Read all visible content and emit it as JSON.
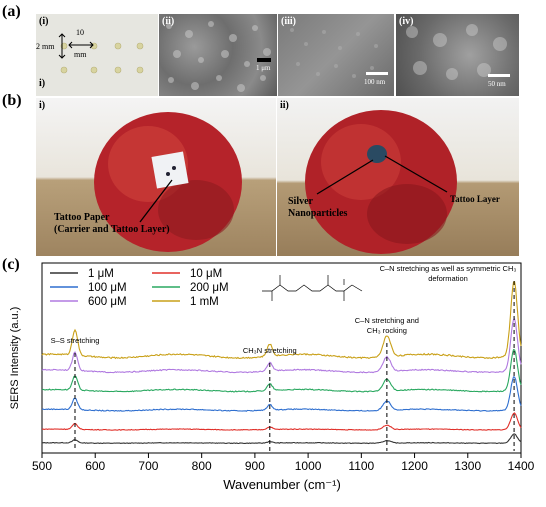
{
  "panel_a": {
    "label": "(a)",
    "sub_i": "(i)",
    "sub_i_lower": "i)",
    "dim_2mm": "2 mm",
    "dim_10mm_top": "10",
    "dim_10mm_bottom": "mm",
    "sub_ii": "(ii)",
    "sub_iii": "(iii)",
    "sub_iv": "(iv)",
    "scale_1um": "1 μm",
    "scale_100nm": "100 nm",
    "scale_50nm": "50 nm"
  },
  "panel_b": {
    "label": "(b)",
    "sub_i": "i)",
    "sub_ii": "ii)",
    "tattoo_paper_line1": "Tattoo Paper",
    "tattoo_paper_line2": "(Carrier and Tattoo Layer)",
    "silver_line1": "Silver",
    "silver_line2": "Nanoparticles",
    "tattoo_layer": "Tattoo Layer"
  },
  "panel_c": {
    "label": "(c)"
  },
  "chart_data": {
    "type": "line",
    "xlabel": "Wavenumber (cm⁻¹)",
    "ylabel": "SERS Intensity (a.u.)",
    "xlim": [
      500,
      1400
    ],
    "x_ticks": [
      500,
      600,
      700,
      800,
      900,
      1000,
      1100,
      1200,
      1300,
      1400
    ],
    "legend_position": "top-left",
    "series": [
      {
        "name": "1 μM",
        "color": "#333333",
        "offset": 0.0,
        "scale": 0.12
      },
      {
        "name": "10 μM",
        "color": "#e0302a",
        "offset": 0.09,
        "scale": 0.22
      },
      {
        "name": "100 μM",
        "color": "#2f6fcf",
        "offset": 0.22,
        "scale": 0.45
      },
      {
        "name": "200 μM",
        "color": "#2aa860",
        "offset": 0.35,
        "scale": 0.55
      },
      {
        "name": "600 μM",
        "color": "#b07ae0",
        "offset": 0.48,
        "scale": 0.7
      },
      {
        "name": "1 mM",
        "color": "#c9a018",
        "offset": 0.58,
        "scale": 1.0
      }
    ],
    "peaks": [
      {
        "x": 562,
        "height": 0.17,
        "width": 7
      },
      {
        "x": 928,
        "height": 0.08,
        "width": 7
      },
      {
        "x": 1148,
        "height": 0.14,
        "width": 10
      },
      {
        "x": 1387,
        "height": 0.5,
        "width": 9
      }
    ],
    "annotations": [
      {
        "x": 562,
        "text": "S–S stretching"
      },
      {
        "x": 928,
        "text": "CH₃N stretching"
      },
      {
        "x": 1148,
        "text": "C–N stretching and\nCH₃ rocking"
      },
      {
        "x": 1387,
        "text": "C–N stretching as well as symmetric CH₃\ndeformation"
      }
    ]
  }
}
